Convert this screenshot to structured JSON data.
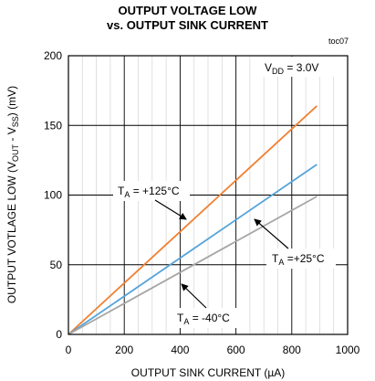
{
  "chart_data": {
    "type": "line",
    "title": "OUTPUT VOLTAGE LOW",
    "subtitle": "vs. OUTPUT SINK CURRENT",
    "ref_tag": "toc07",
    "xlabel": "OUTPUT SINK CURRENT (µA)",
    "ylabel": {
      "main": "OUTPUT VOTLAGE LOW (V",
      "sub1": "OUT",
      "mid": " - V",
      "sub2": "SS",
      "end": ") (mV)"
    },
    "xlim": [
      0,
      1000
    ],
    "ylim": [
      0,
      200
    ],
    "x_ticks": [
      "0",
      "200",
      "400",
      "600",
      "800",
      "1000"
    ],
    "y_ticks": [
      "0",
      "50",
      "100",
      "150",
      "200"
    ],
    "grid": true,
    "condition": {
      "main": "V",
      "sub": "DD",
      "rest": " = 3.0V"
    },
    "series": [
      {
        "name": "T_A = +125°C",
        "label": {
          "pre": "T",
          "sub": "A",
          "post": " = +125°C"
        },
        "color": "#f07f31",
        "x": [
          0,
          890
        ],
        "y": [
          0,
          164
        ]
      },
      {
        "name": "T_A = +25°C",
        "label": {
          "pre": "T",
          "sub": "A",
          "post": " =+25°C"
        },
        "color": "#56a4d9",
        "x": [
          0,
          890
        ],
        "y": [
          0,
          122
        ]
      },
      {
        "name": "T_A = -40°C",
        "label": {
          "pre": "T",
          "sub": "A",
          "post": " = -40°C"
        },
        "color": "#a6a6a6",
        "x": [
          0,
          890
        ],
        "y": [
          0,
          99
        ]
      }
    ]
  }
}
